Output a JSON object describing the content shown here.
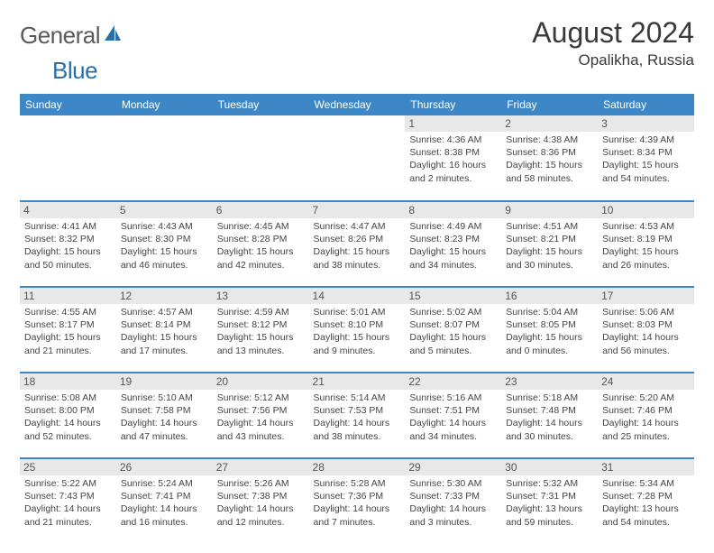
{
  "logo": {
    "text1": "General",
    "text2": "Blue"
  },
  "title": "August 2024",
  "location": "Opalikha, Russia",
  "colors": {
    "header_bg": "#3d87c7",
    "header_text": "#ffffff",
    "date_bg": "#e8e8e8",
    "border": "#3d87c7",
    "logo_gray": "#5a5a5a",
    "logo_blue": "#2c6fa8"
  },
  "day_names": [
    "Sunday",
    "Monday",
    "Tuesday",
    "Wednesday",
    "Thursday",
    "Friday",
    "Saturday"
  ],
  "weeks": [
    [
      {
        "n": "",
        "sr": "",
        "ss": "",
        "dl": ""
      },
      {
        "n": "",
        "sr": "",
        "ss": "",
        "dl": ""
      },
      {
        "n": "",
        "sr": "",
        "ss": "",
        "dl": ""
      },
      {
        "n": "",
        "sr": "",
        "ss": "",
        "dl": ""
      },
      {
        "n": "1",
        "sr": "Sunrise: 4:36 AM",
        "ss": "Sunset: 8:38 PM",
        "dl": "Daylight: 16 hours and 2 minutes."
      },
      {
        "n": "2",
        "sr": "Sunrise: 4:38 AM",
        "ss": "Sunset: 8:36 PM",
        "dl": "Daylight: 15 hours and 58 minutes."
      },
      {
        "n": "3",
        "sr": "Sunrise: 4:39 AM",
        "ss": "Sunset: 8:34 PM",
        "dl": "Daylight: 15 hours and 54 minutes."
      }
    ],
    [
      {
        "n": "4",
        "sr": "Sunrise: 4:41 AM",
        "ss": "Sunset: 8:32 PM",
        "dl": "Daylight: 15 hours and 50 minutes."
      },
      {
        "n": "5",
        "sr": "Sunrise: 4:43 AM",
        "ss": "Sunset: 8:30 PM",
        "dl": "Daylight: 15 hours and 46 minutes."
      },
      {
        "n": "6",
        "sr": "Sunrise: 4:45 AM",
        "ss": "Sunset: 8:28 PM",
        "dl": "Daylight: 15 hours and 42 minutes."
      },
      {
        "n": "7",
        "sr": "Sunrise: 4:47 AM",
        "ss": "Sunset: 8:26 PM",
        "dl": "Daylight: 15 hours and 38 minutes."
      },
      {
        "n": "8",
        "sr": "Sunrise: 4:49 AM",
        "ss": "Sunset: 8:23 PM",
        "dl": "Daylight: 15 hours and 34 minutes."
      },
      {
        "n": "9",
        "sr": "Sunrise: 4:51 AM",
        "ss": "Sunset: 8:21 PM",
        "dl": "Daylight: 15 hours and 30 minutes."
      },
      {
        "n": "10",
        "sr": "Sunrise: 4:53 AM",
        "ss": "Sunset: 8:19 PM",
        "dl": "Daylight: 15 hours and 26 minutes."
      }
    ],
    [
      {
        "n": "11",
        "sr": "Sunrise: 4:55 AM",
        "ss": "Sunset: 8:17 PM",
        "dl": "Daylight: 15 hours and 21 minutes."
      },
      {
        "n": "12",
        "sr": "Sunrise: 4:57 AM",
        "ss": "Sunset: 8:14 PM",
        "dl": "Daylight: 15 hours and 17 minutes."
      },
      {
        "n": "13",
        "sr": "Sunrise: 4:59 AM",
        "ss": "Sunset: 8:12 PM",
        "dl": "Daylight: 15 hours and 13 minutes."
      },
      {
        "n": "14",
        "sr": "Sunrise: 5:01 AM",
        "ss": "Sunset: 8:10 PM",
        "dl": "Daylight: 15 hours and 9 minutes."
      },
      {
        "n": "15",
        "sr": "Sunrise: 5:02 AM",
        "ss": "Sunset: 8:07 PM",
        "dl": "Daylight: 15 hours and 5 minutes."
      },
      {
        "n": "16",
        "sr": "Sunrise: 5:04 AM",
        "ss": "Sunset: 8:05 PM",
        "dl": "Daylight: 15 hours and 0 minutes."
      },
      {
        "n": "17",
        "sr": "Sunrise: 5:06 AM",
        "ss": "Sunset: 8:03 PM",
        "dl": "Daylight: 14 hours and 56 minutes."
      }
    ],
    [
      {
        "n": "18",
        "sr": "Sunrise: 5:08 AM",
        "ss": "Sunset: 8:00 PM",
        "dl": "Daylight: 14 hours and 52 minutes."
      },
      {
        "n": "19",
        "sr": "Sunrise: 5:10 AM",
        "ss": "Sunset: 7:58 PM",
        "dl": "Daylight: 14 hours and 47 minutes."
      },
      {
        "n": "20",
        "sr": "Sunrise: 5:12 AM",
        "ss": "Sunset: 7:56 PM",
        "dl": "Daylight: 14 hours and 43 minutes."
      },
      {
        "n": "21",
        "sr": "Sunrise: 5:14 AM",
        "ss": "Sunset: 7:53 PM",
        "dl": "Daylight: 14 hours and 38 minutes."
      },
      {
        "n": "22",
        "sr": "Sunrise: 5:16 AM",
        "ss": "Sunset: 7:51 PM",
        "dl": "Daylight: 14 hours and 34 minutes."
      },
      {
        "n": "23",
        "sr": "Sunrise: 5:18 AM",
        "ss": "Sunset: 7:48 PM",
        "dl": "Daylight: 14 hours and 30 minutes."
      },
      {
        "n": "24",
        "sr": "Sunrise: 5:20 AM",
        "ss": "Sunset: 7:46 PM",
        "dl": "Daylight: 14 hours and 25 minutes."
      }
    ],
    [
      {
        "n": "25",
        "sr": "Sunrise: 5:22 AM",
        "ss": "Sunset: 7:43 PM",
        "dl": "Daylight: 14 hours and 21 minutes."
      },
      {
        "n": "26",
        "sr": "Sunrise: 5:24 AM",
        "ss": "Sunset: 7:41 PM",
        "dl": "Daylight: 14 hours and 16 minutes."
      },
      {
        "n": "27",
        "sr": "Sunrise: 5:26 AM",
        "ss": "Sunset: 7:38 PM",
        "dl": "Daylight: 14 hours and 12 minutes."
      },
      {
        "n": "28",
        "sr": "Sunrise: 5:28 AM",
        "ss": "Sunset: 7:36 PM",
        "dl": "Daylight: 14 hours and 7 minutes."
      },
      {
        "n": "29",
        "sr": "Sunrise: 5:30 AM",
        "ss": "Sunset: 7:33 PM",
        "dl": "Daylight: 14 hours and 3 minutes."
      },
      {
        "n": "30",
        "sr": "Sunrise: 5:32 AM",
        "ss": "Sunset: 7:31 PM",
        "dl": "Daylight: 13 hours and 59 minutes."
      },
      {
        "n": "31",
        "sr": "Sunrise: 5:34 AM",
        "ss": "Sunset: 7:28 PM",
        "dl": "Daylight: 13 hours and 54 minutes."
      }
    ]
  ]
}
